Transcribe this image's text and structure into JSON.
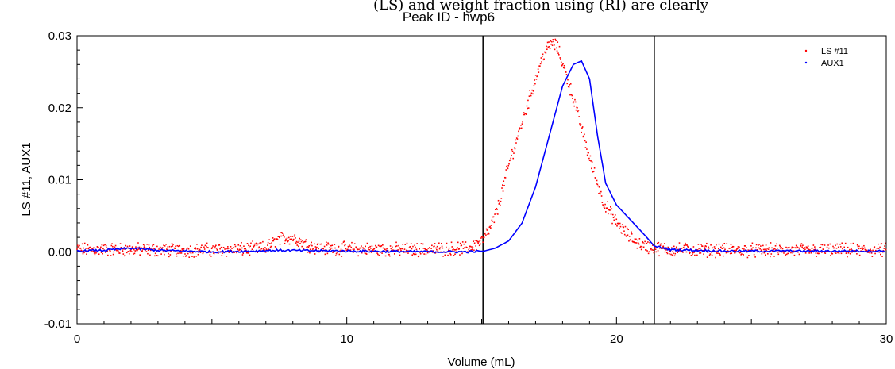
{
  "top_fragment": "(LS) and weight fraction using (RI) are clearly",
  "chart_data": {
    "type": "scatter",
    "title": "Peak ID - hwp6",
    "xlabel": "Volume (mL)",
    "ylabel": "LS #11, AUX1",
    "xlim": [
      0,
      30
    ],
    "ylim": [
      -0.01,
      0.03
    ],
    "x_ticks": [
      "0",
      "10",
      "20",
      "30"
    ],
    "y_ticks": [
      "-0.01",
      "0.00",
      "0.01",
      "0.02",
      "0.03"
    ],
    "grid": false,
    "legend_position": "top-right",
    "vertical_markers": [
      15.05,
      21.4
    ],
    "series": [
      {
        "name": "LS #11",
        "style": "points",
        "color": "#ff0000",
        "x": [
          0,
          2,
          4,
          6,
          7,
          7.5,
          8,
          8.5,
          9,
          11,
          13,
          14.5,
          15,
          15.3,
          15.6,
          16,
          16.5,
          17,
          17.3,
          17.6,
          17.8,
          18.1,
          18.5,
          19,
          19.5,
          20,
          20.5,
          21,
          21.4,
          22,
          25,
          30
        ],
        "values": [
          0.0003,
          0.0003,
          0.0002,
          0.0003,
          0.0005,
          0.0018,
          0.002,
          0.001,
          0.0005,
          0.0003,
          0.0003,
          0.0005,
          0.0015,
          0.003,
          0.006,
          0.012,
          0.018,
          0.024,
          0.0275,
          0.029,
          0.0285,
          0.025,
          0.02,
          0.013,
          0.007,
          0.004,
          0.002,
          0.0008,
          0.0005,
          0.0003,
          0.0002,
          0.0002
        ]
      },
      {
        "name": "AUX1",
        "style": "line",
        "color": "#0000ff",
        "x": [
          0,
          1,
          2,
          3,
          5,
          6.5,
          7.5,
          10,
          13,
          14.5,
          15.1,
          15.5,
          16,
          16.5,
          17,
          17.5,
          18,
          18.4,
          18.7,
          19,
          19.3,
          19.6,
          20,
          20.5,
          21,
          21.4,
          22,
          24,
          27,
          30
        ],
        "values": [
          0.0001,
          0.0002,
          0.0005,
          0.0002,
          0.0,
          0.0001,
          0.0002,
          0.0001,
          0.0,
          0.0,
          0.0001,
          0.0005,
          0.0015,
          0.004,
          0.009,
          0.016,
          0.023,
          0.026,
          0.0265,
          0.024,
          0.016,
          0.0095,
          0.0065,
          0.0045,
          0.0025,
          0.0008,
          0.0003,
          0.0001,
          0.0001,
          0.0001
        ]
      }
    ]
  }
}
